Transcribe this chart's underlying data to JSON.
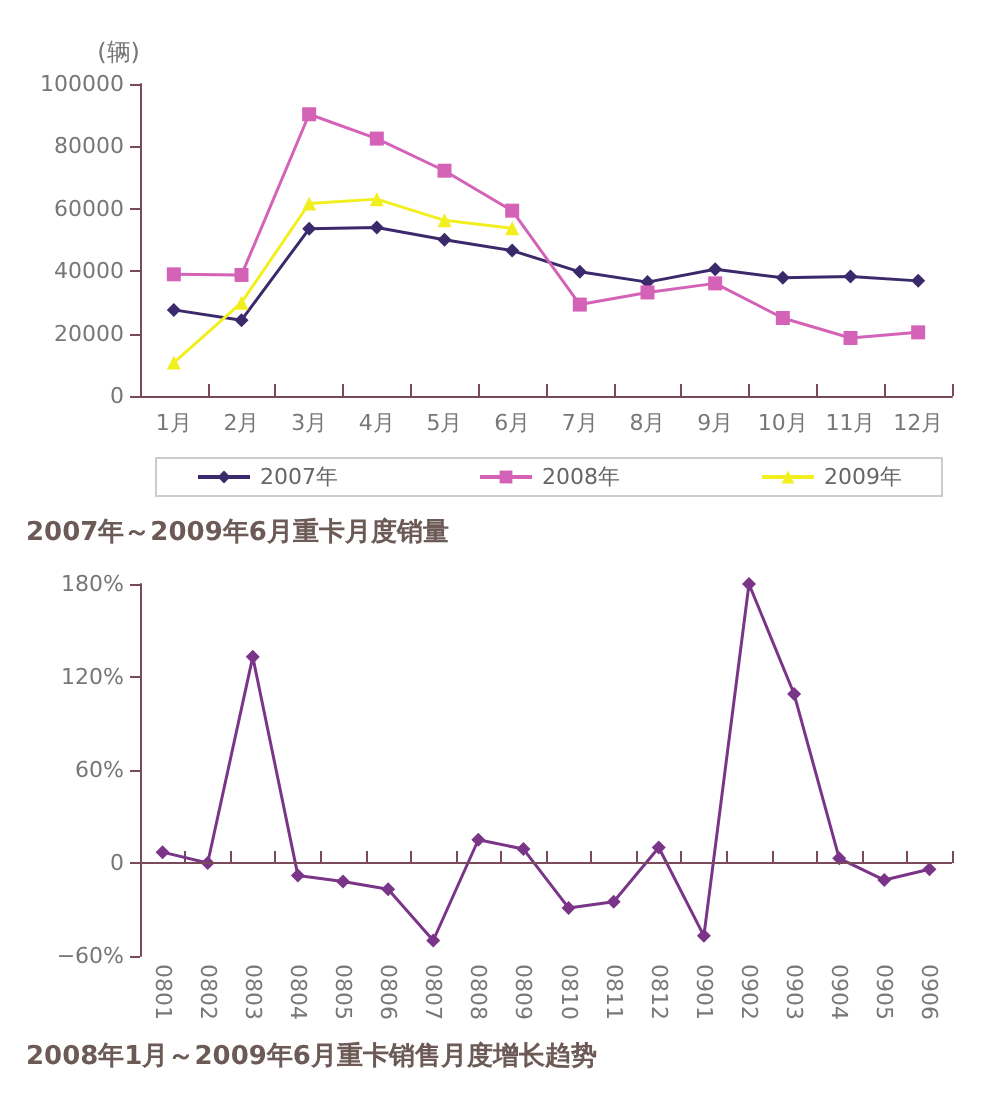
{
  "chart_data": [
    {
      "type": "line",
      "title": "2007年～2009年6月重卡月度销量",
      "ylabel": "(辆)",
      "categories": [
        "1月",
        "2月",
        "3月",
        "4月",
        "5月",
        "6月",
        "7月",
        "8月",
        "9月",
        "10月",
        "11月",
        "12月"
      ],
      "series": [
        {
          "name": "2007年",
          "color": "#3b2a6b",
          "marker": "diamond",
          "values": [
            27600,
            24300,
            53600,
            54000,
            50100,
            46600,
            39800,
            36500,
            40600,
            37900,
            38300,
            36900
          ]
        },
        {
          "name": "2008年",
          "color": "#d463b8",
          "marker": "square",
          "values": [
            39000,
            38800,
            90300,
            82500,
            72200,
            59400,
            29300,
            33200,
            36100,
            25000,
            18600,
            20400
          ]
        },
        {
          "name": "2009年",
          "color": "#f2ef1e",
          "marker": "triangle",
          "values": [
            10700,
            29900,
            61700,
            63100,
            56300,
            53800,
            null,
            null,
            null,
            null,
            null,
            null
          ]
        }
      ],
      "ylim": [
        0,
        100000
      ],
      "yticks": [
        0,
        20000,
        40000,
        60000,
        80000,
        100000
      ],
      "grid": false,
      "legend": "bottom"
    },
    {
      "type": "line",
      "title": "2008年1月～2009年6月重卡销售月度增长趋势",
      "categories": [
        "0801",
        "0802",
        "0803",
        "0804",
        "0805",
        "0806",
        "0807",
        "0808",
        "0809",
        "0810",
        "0811",
        "0812",
        "0901",
        "0902",
        "0903",
        "0904",
        "0905",
        "0906"
      ],
      "series": [
        {
          "color": "#7a3488",
          "marker": "diamond",
          "values": [
            7,
            0,
            133,
            -8,
            -12,
            -17,
            -50,
            15,
            9,
            -29,
            -25,
            10,
            -47,
            180,
            109,
            3,
            -11,
            -4
          ]
        }
      ],
      "ref_lines": [
        {
          "axis": "y",
          "value": 0,
          "color": "#7a4a5a"
        }
      ],
      "ylim": [
        -60,
        180
      ],
      "yticks": [
        {
          "value": -60,
          "label": "−60%"
        },
        {
          "value": 0,
          "label": "0"
        },
        {
          "value": 60,
          "label": "60%"
        },
        {
          "value": 120,
          "label": "120%"
        },
        {
          "value": 180,
          "label": "180%"
        }
      ],
      "grid": false,
      "legend": false
    }
  ]
}
